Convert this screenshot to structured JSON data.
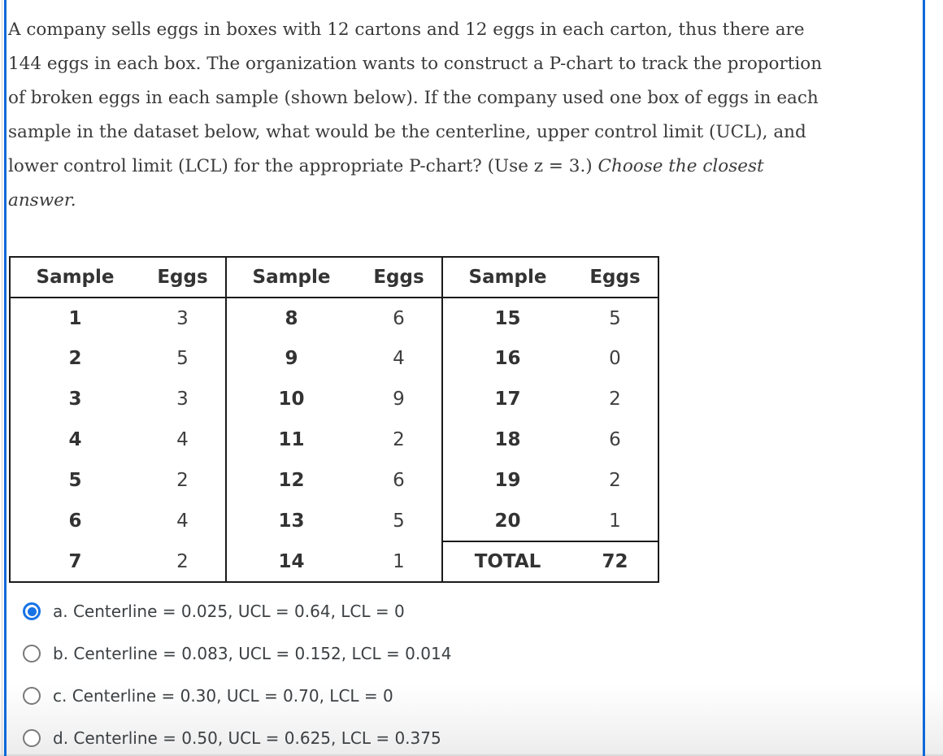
{
  "question": {
    "line1": "A company sells eggs in boxes with 12 cartons and 12 eggs in each carton, thus there are",
    "line2": "144 eggs in each box. The organization wants to construct a P-chart to track the proportion",
    "line3": "of broken eggs in each sample (shown below). If the company used one box of eggs in each",
    "line4": "sample in the dataset below, what would be the centerline, upper control limit (UCL), and",
    "line5_text": "lower control limit (LCL) for the appropriate P-chart? (Use z = 3.) ",
    "line5_italic": "Choose the closest",
    "line6_italic": "answer."
  },
  "table": {
    "groups": [
      {
        "headers": [
          "Sample",
          "Eggs"
        ],
        "rows": [
          [
            "1",
            "3"
          ],
          [
            "2",
            "5"
          ],
          [
            "3",
            "3"
          ],
          [
            "4",
            "4"
          ],
          [
            "5",
            "2"
          ],
          [
            "6",
            "4"
          ],
          [
            "7",
            "2"
          ]
        ]
      },
      {
        "headers": [
          "Sample",
          "Eggs"
        ],
        "rows": [
          [
            "8",
            "6"
          ],
          [
            "9",
            "4"
          ],
          [
            "10",
            "9"
          ],
          [
            "11",
            "2"
          ],
          [
            "12",
            "6"
          ],
          [
            "13",
            "5"
          ],
          [
            "14",
            "1"
          ]
        ]
      },
      {
        "headers": [
          "Sample",
          "Eggs"
        ],
        "rows": [
          [
            "15",
            "5"
          ],
          [
            "16",
            "0"
          ],
          [
            "17",
            "2"
          ],
          [
            "18",
            "6"
          ],
          [
            "19",
            "2"
          ],
          [
            "20",
            "1"
          ]
        ],
        "total": [
          "TOTAL",
          "72"
        ]
      }
    ]
  },
  "options": [
    {
      "label": "a. Centerline = 0.025, UCL = 0.64, LCL = 0",
      "selected": true
    },
    {
      "label": "b. Centerline = 0.083, UCL = 0.152, LCL = 0.014",
      "selected": false
    },
    {
      "label": "c. Centerline = 0.30, UCL = 0.70, LCL = 0",
      "selected": false
    },
    {
      "label": "d. Centerline = 0.50, UCL = 0.625, LCL = 0.375",
      "selected": false
    }
  ],
  "colors": {
    "accent_blue_bar": "#0d68d9",
    "radio_selected_blue": "#1673e6",
    "table_border": "#1b1b1b"
  }
}
